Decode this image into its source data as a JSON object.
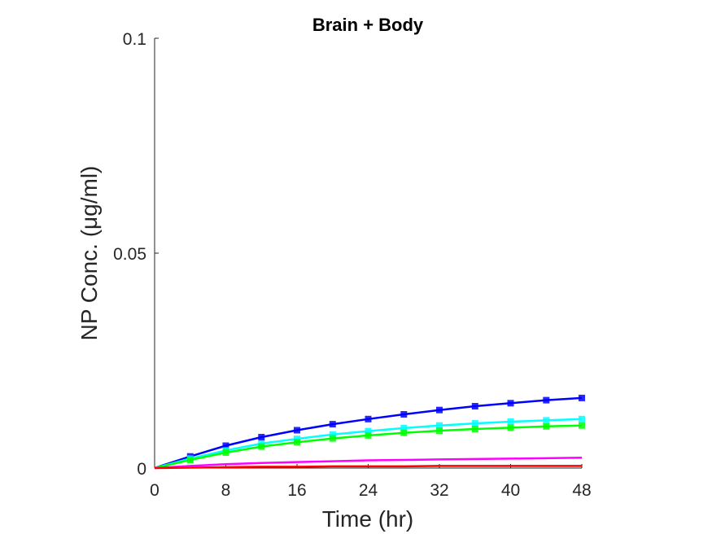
{
  "chart_data": {
    "type": "line",
    "title": "Brain + Body",
    "xlabel": "Time (hr)",
    "ylabel": "NP Conc. (μg/ml)",
    "xlim": [
      0,
      48
    ],
    "ylim": [
      0,
      0.1
    ],
    "xticks": [
      "0",
      "8",
      "16",
      "24",
      "32",
      "40",
      "48"
    ],
    "yticks": [
      "0",
      "0.05",
      "0.1"
    ],
    "grid": false,
    "legend": "none",
    "x": [
      0,
      4,
      8,
      12,
      16,
      20,
      24,
      28,
      32,
      36,
      40,
      44,
      48
    ],
    "series": [
      {
        "color": "#0000ff",
        "values": [
          0,
          0.0027,
          0.0052,
          0.0072,
          0.0088,
          0.0102,
          0.0114,
          0.0125,
          0.0135,
          0.0144,
          0.0151,
          0.0158,
          0.0163
        ]
      },
      {
        "color": "#00ffff",
        "values": [
          0,
          0.0022,
          0.0041,
          0.0057,
          0.0068,
          0.0078,
          0.0086,
          0.0093,
          0.0099,
          0.0104,
          0.0108,
          0.0111,
          0.0114
        ]
      },
      {
        "color": "#00ff00",
        "values": [
          0,
          0.0019,
          0.0036,
          0.005,
          0.006,
          0.0069,
          0.0076,
          0.0082,
          0.0087,
          0.0091,
          0.0094,
          0.0097,
          0.0099
        ]
      },
      {
        "color": "#ff00ff",
        "values": [
          0,
          0.0005,
          0.0009,
          0.0012,
          0.0014,
          0.0016,
          0.0018,
          0.0019,
          0.002,
          0.0021,
          0.0022,
          0.0023,
          0.0024
        ]
      },
      {
        "color": "#ff0000",
        "values": [
          0,
          0.0001,
          0.0002,
          0.0003,
          0.0003,
          0.0004,
          0.0004,
          0.0004,
          0.0005,
          0.0005,
          0.0005,
          0.0005,
          0.0005
        ]
      }
    ]
  }
}
